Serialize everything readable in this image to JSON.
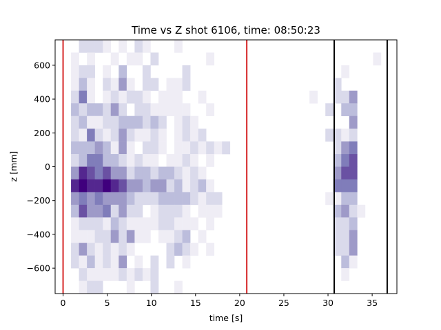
{
  "chart_data": {
    "type": "heatmap",
    "title": "Time vs Z shot 6106, time: 08:50:23",
    "xlabel": "time [s]",
    "ylabel": "z [mm]",
    "xlim": [
      -0.9,
      37.8
    ],
    "ylim": [
      -750,
      750
    ],
    "xticks": [
      0,
      5,
      10,
      15,
      20,
      25,
      30,
      35
    ],
    "yticks": [
      -600,
      -400,
      -200,
      0,
      200,
      400,
      600
    ],
    "colormap": "Purples",
    "bins": {
      "x_start": 0.0,
      "x_width": 0.9,
      "x_count": 42,
      "y_start": -750,
      "y_width": 75,
      "y_count": 20
    },
    "vlines": [
      {
        "x": 0.0,
        "color": "#d62728"
      },
      {
        "x": 20.8,
        "color": "#d62728"
      },
      {
        "x": 30.7,
        "color": "#000000"
      },
      {
        "x": 36.7,
        "color": "#000000"
      }
    ],
    "grid": false,
    "counts": [
      [
        0,
        0,
        2,
        2,
        2,
        1,
        0,
        1,
        0,
        2,
        1,
        0,
        0,
        0,
        1,
        0,
        0,
        0,
        0,
        0,
        0,
        0,
        0,
        0,
        0,
        0,
        0,
        0,
        0,
        0,
        0,
        0,
        0,
        0,
        0,
        0,
        0,
        0,
        0,
        0,
        0,
        0
      ],
      [
        0,
        1,
        0,
        1,
        0,
        0,
        1,
        0,
        1,
        1,
        0,
        2,
        0,
        0,
        0,
        0,
        0,
        0,
        1,
        0,
        0,
        0,
        0,
        0,
        0,
        0,
        0,
        0,
        0,
        0,
        0,
        0,
        0,
        0,
        0,
        0,
        0,
        0,
        0,
        1,
        0,
        0
      ],
      [
        0,
        1,
        2,
        2,
        0,
        1,
        0,
        3,
        0,
        0,
        2,
        0,
        0,
        0,
        0,
        2,
        0,
        0,
        0,
        0,
        0,
        0,
        0,
        0,
        0,
        0,
        0,
        0,
        0,
        0,
        0,
        0,
        0,
        0,
        0,
        1,
        0,
        0,
        0,
        0,
        0,
        0
      ],
      [
        0,
        1,
        3,
        1,
        0,
        2,
        1,
        4,
        1,
        0,
        2,
        2,
        0,
        1,
        1,
        2,
        0,
        0,
        0,
        0,
        0,
        0,
        0,
        0,
        0,
        0,
        0,
        0,
        0,
        0,
        0,
        0,
        0,
        0,
        2,
        0,
        0,
        0,
        0,
        0,
        0,
        0
      ],
      [
        0,
        2,
        5,
        1,
        0,
        1,
        2,
        1,
        2,
        2,
        1,
        0,
        1,
        1,
        1,
        0,
        0,
        1,
        0,
        0,
        0,
        0,
        0,
        0,
        0,
        0,
        0,
        0,
        0,
        0,
        0,
        1,
        0,
        0,
        2,
        2,
        4,
        0,
        0,
        0,
        0,
        0
      ],
      [
        0,
        3,
        2,
        3,
        3,
        2,
        4,
        2,
        0,
        2,
        2,
        1,
        1,
        1,
        1,
        1,
        0,
        0,
        1,
        0,
        0,
        0,
        0,
        0,
        0,
        0,
        0,
        0,
        0,
        0,
        0,
        0,
        0,
        2,
        0,
        3,
        3,
        0,
        0,
        0,
        0,
        0
      ],
      [
        0,
        2,
        3,
        1,
        1,
        2,
        2,
        3,
        3,
        3,
        2,
        3,
        2,
        0,
        1,
        2,
        1,
        0,
        0,
        0,
        0,
        0,
        0,
        0,
        0,
        0,
        0,
        0,
        0,
        0,
        0,
        0,
        0,
        0,
        0,
        0,
        4,
        0,
        0,
        0,
        0,
        0
      ],
      [
        0,
        2,
        1,
        5,
        2,
        1,
        2,
        4,
        2,
        1,
        1,
        2,
        1,
        0,
        1,
        2,
        1,
        2,
        0,
        0,
        0,
        0,
        0,
        0,
        0,
        0,
        0,
        0,
        0,
        0,
        0,
        0,
        0,
        2,
        2,
        1,
        2,
        0,
        0,
        0,
        0,
        0
      ],
      [
        0,
        3,
        3,
        3,
        4,
        3,
        1,
        4,
        1,
        0,
        2,
        2,
        1,
        0,
        1,
        1,
        2,
        1,
        2,
        1,
        2,
        0,
        0,
        0,
        0,
        0,
        0,
        0,
        0,
        0,
        0,
        0,
        0,
        0,
        2,
        4,
        5,
        0,
        0,
        0,
        0,
        0
      ],
      [
        0,
        2,
        3,
        5,
        5,
        3,
        3,
        2,
        1,
        2,
        1,
        1,
        0,
        1,
        1,
        2,
        1,
        0,
        1,
        0,
        0,
        0,
        0,
        0,
        0,
        0,
        0,
        0,
        0,
        0,
        0,
        0,
        0,
        0,
        3,
        5,
        6,
        0,
        0,
        0,
        0,
        0
      ],
      [
        0,
        4,
        7,
        6,
        5,
        6,
        4,
        4,
        2,
        3,
        3,
        2,
        3,
        3,
        2,
        1,
        2,
        1,
        0,
        0,
        0,
        0,
        0,
        0,
        0,
        0,
        0,
        0,
        0,
        0,
        0,
        0,
        0,
        0,
        4,
        6,
        6,
        0,
        0,
        0,
        0,
        0
      ],
      [
        0,
        7,
        8,
        7,
        7,
        8,
        7,
        6,
        4,
        4,
        3,
        4,
        4,
        2,
        3,
        1,
        2,
        3,
        1,
        0,
        0,
        0,
        0,
        0,
        0,
        0,
        0,
        0,
        0,
        0,
        0,
        0,
        0,
        0,
        5,
        5,
        5,
        0,
        0,
        0,
        0,
        0
      ],
      [
        0,
        4,
        5,
        4,
        5,
        4,
        4,
        4,
        3,
        2,
        2,
        2,
        3,
        3,
        3,
        3,
        2,
        1,
        2,
        2,
        0,
        0,
        0,
        0,
        0,
        0,
        0,
        0,
        0,
        0,
        0,
        0,
        0,
        1,
        1,
        3,
        3,
        0,
        0,
        0,
        0,
        0
      ],
      [
        0,
        3,
        6,
        4,
        4,
        5,
        2,
        4,
        2,
        2,
        0,
        1,
        2,
        2,
        2,
        1,
        0,
        1,
        1,
        1,
        0,
        0,
        0,
        0,
        0,
        0,
        0,
        0,
        0,
        0,
        0,
        0,
        0,
        0,
        3,
        4,
        2,
        1,
        0,
        0,
        0,
        0
      ],
      [
        0,
        1,
        2,
        2,
        2,
        1,
        3,
        2,
        1,
        1,
        1,
        1,
        2,
        2,
        1,
        1,
        1,
        0,
        1,
        0,
        0,
        0,
        0,
        0,
        0,
        0,
        0,
        0,
        0,
        0,
        0,
        0,
        0,
        0,
        2,
        2,
        3,
        0,
        0,
        0,
        0,
        0
      ],
      [
        0,
        1,
        1,
        1,
        2,
        2,
        4,
        2,
        4,
        1,
        1,
        0,
        1,
        1,
        2,
        3,
        0,
        1,
        0,
        0,
        0,
        0,
        0,
        0,
        0,
        0,
        0,
        0,
        0,
        0,
        0,
        0,
        0,
        0,
        2,
        2,
        4,
        0,
        0,
        0,
        0,
        0
      ],
      [
        0,
        2,
        4,
        2,
        1,
        2,
        1,
        2,
        1,
        0,
        0,
        0,
        0,
        2,
        3,
        2,
        1,
        0,
        1,
        0,
        0,
        0,
        0,
        0,
        0,
        0,
        0,
        0,
        0,
        0,
        0,
        0,
        0,
        0,
        2,
        2,
        4,
        0,
        0,
        0,
        0,
        0
      ],
      [
        0,
        2,
        1,
        3,
        1,
        2,
        1,
        4,
        0,
        1,
        0,
        2,
        0,
        2,
        0,
        1,
        0,
        0,
        0,
        0,
        0,
        0,
        0,
        0,
        0,
        0,
        0,
        0,
        0,
        0,
        0,
        0,
        0,
        0,
        0,
        3,
        1,
        0,
        0,
        0,
        0,
        0
      ],
      [
        0,
        0,
        2,
        1,
        1,
        1,
        1,
        2,
        1,
        2,
        1,
        2,
        0,
        0,
        0,
        0,
        0,
        0,
        0,
        0,
        0,
        0,
        0,
        0,
        0,
        0,
        0,
        0,
        0,
        0,
        0,
        0,
        0,
        0,
        0,
        1,
        0,
        0,
        0,
        0,
        0,
        0
      ],
      [
        0,
        0,
        1,
        2,
        2,
        0,
        0,
        0,
        1,
        0,
        0,
        2,
        0,
        0,
        1,
        0,
        0,
        0,
        0,
        0,
        0,
        0,
        0,
        0,
        0,
        0,
        0,
        0,
        0,
        0,
        0,
        0,
        0,
        0,
        0,
        0,
        0,
        0,
        0,
        0,
        0,
        0
      ]
    ]
  }
}
